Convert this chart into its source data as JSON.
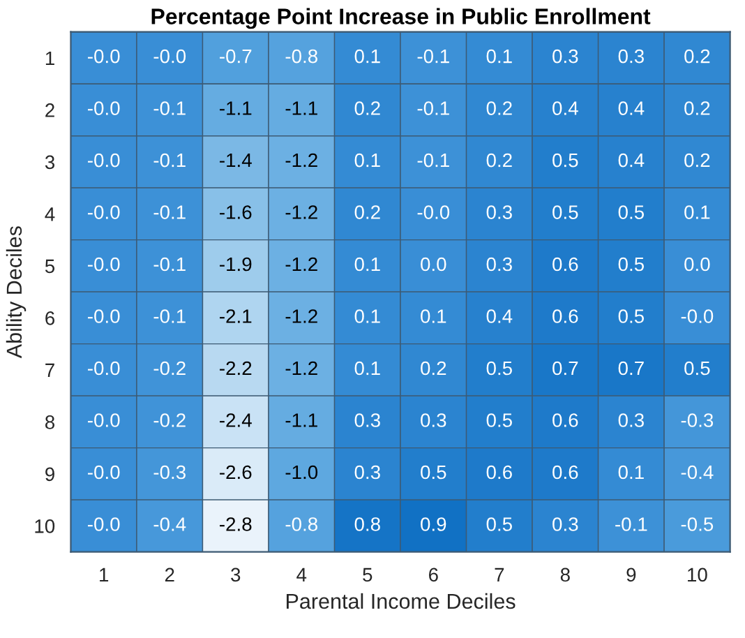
{
  "chart_data": {
    "type": "heatmap",
    "title": "Percentage Point Increase in Public Enrollment",
    "xlabel": "Parental Income Deciles",
    "ylabel": "Ability Deciles",
    "categories": [
      "1",
      "2",
      "3",
      "4",
      "5",
      "6",
      "7",
      "8",
      "9",
      "10"
    ],
    "y_categories": [
      "1",
      "2",
      "3",
      "4",
      "5",
      "6",
      "7",
      "8",
      "9",
      "10"
    ],
    "cells": [
      [
        -0.0,
        -0.0,
        -0.7,
        -0.8,
        0.1,
        -0.1,
        0.1,
        0.3,
        0.3,
        0.2
      ],
      [
        -0.0,
        -0.1,
        -1.1,
        -1.1,
        0.2,
        -0.1,
        0.2,
        0.4,
        0.4,
        0.2
      ],
      [
        -0.0,
        -0.1,
        -1.4,
        -1.2,
        0.1,
        -0.1,
        0.2,
        0.5,
        0.4,
        0.2
      ],
      [
        -0.0,
        -0.1,
        -1.6,
        -1.2,
        0.2,
        -0.0,
        0.3,
        0.5,
        0.5,
        0.1
      ],
      [
        -0.0,
        -0.1,
        -1.9,
        -1.2,
        0.1,
        0.0,
        0.3,
        0.6,
        0.5,
        0.0
      ],
      [
        -0.0,
        -0.1,
        -2.1,
        -1.2,
        0.1,
        0.1,
        0.4,
        0.6,
        0.5,
        -0.0
      ],
      [
        -0.0,
        -0.2,
        -2.2,
        -1.2,
        0.1,
        0.2,
        0.5,
        0.7,
        0.7,
        0.5
      ],
      [
        -0.0,
        -0.2,
        -2.4,
        -1.1,
        0.3,
        0.3,
        0.5,
        0.6,
        0.3,
        -0.3
      ],
      [
        -0.0,
        -0.3,
        -2.6,
        -1.0,
        0.3,
        0.5,
        0.6,
        0.6,
        0.1,
        -0.4
      ],
      [
        -0.0,
        -0.4,
        -2.8,
        -0.8,
        0.8,
        0.9,
        0.5,
        0.3,
        -0.1,
        -0.5
      ]
    ],
    "cell_labels": [
      [
        "-0.0",
        "-0.0",
        "-0.7",
        "-0.8",
        "0.1",
        "-0.1",
        "0.1",
        "0.3",
        "0.3",
        "0.2"
      ],
      [
        "-0.0",
        "-0.1",
        "-1.1",
        "-1.1",
        "0.2",
        "-0.1",
        "0.2",
        "0.4",
        "0.4",
        "0.2"
      ],
      [
        "-0.0",
        "-0.1",
        "-1.4",
        "-1.2",
        "0.1",
        "-0.1",
        "0.2",
        "0.5",
        "0.4",
        "0.2"
      ],
      [
        "-0.0",
        "-0.1",
        "-1.6",
        "-1.2",
        "0.2",
        "-0.0",
        "0.3",
        "0.5",
        "0.5",
        "0.1"
      ],
      [
        "-0.0",
        "-0.1",
        "-1.9",
        "-1.2",
        "0.1",
        "0.0",
        "0.3",
        "0.6",
        "0.5",
        "0.0"
      ],
      [
        "-0.0",
        "-0.1",
        "-2.1",
        "-1.2",
        "0.1",
        "0.1",
        "0.4",
        "0.6",
        "0.5",
        "-0.0"
      ],
      [
        "-0.0",
        "-0.2",
        "-2.2",
        "-1.2",
        "0.1",
        "0.2",
        "0.5",
        "0.7",
        "0.7",
        "0.5"
      ],
      [
        "-0.0",
        "-0.2",
        "-2.4",
        "-1.1",
        "0.3",
        "0.3",
        "0.5",
        "0.6",
        "0.3",
        "-0.3"
      ],
      [
        "-0.0",
        "-0.3",
        "-2.6",
        "-1.0",
        "0.3",
        "0.5",
        "0.6",
        "0.6",
        "0.1",
        "-0.4"
      ],
      [
        "-0.0",
        "-0.4",
        "-2.8",
        "-0.8",
        "0.8",
        "0.9",
        "0.5",
        "0.3",
        "-0.1",
        "-0.5"
      ]
    ],
    "data_labels": true
  }
}
